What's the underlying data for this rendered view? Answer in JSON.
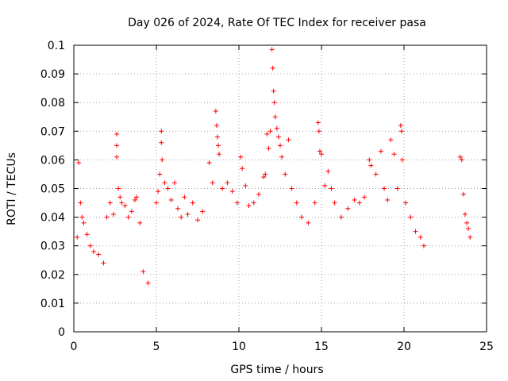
{
  "chart_data": {
    "type": "scatter",
    "title": "Day 026 of 2024, Rate Of TEC Index for receiver pasa",
    "xlabel": "GPS time / hours",
    "ylabel": "ROTI / TECUs",
    "xlim": [
      0,
      25
    ],
    "ylim": [
      0,
      0.1
    ],
    "grid": true,
    "marker": "plus",
    "color": "#ff0000",
    "xticks": [
      "0",
      "5",
      "10",
      "15",
      "20",
      "25"
    ],
    "yticks": [
      "0",
      "0.01",
      "0.02",
      "0.03",
      "0.04",
      "0.05",
      "0.06",
      "0.07",
      "0.08",
      "0.09",
      "0.1"
    ],
    "series": [
      {
        "points": [
          [
            0.3,
            0.059
          ],
          [
            0.4,
            0.045
          ],
          [
            0.5,
            0.04
          ],
          [
            0.6,
            0.038
          ],
          [
            0.2,
            0.033
          ],
          [
            0.8,
            0.034
          ],
          [
            1.0,
            0.03
          ],
          [
            1.2,
            0.028
          ],
          [
            1.5,
            0.027
          ],
          [
            1.8,
            0.024
          ],
          [
            2.0,
            0.04
          ],
          [
            2.2,
            0.045
          ],
          [
            2.4,
            0.041
          ],
          [
            2.6,
            0.069
          ],
          [
            2.6,
            0.065
          ],
          [
            2.6,
            0.061
          ],
          [
            2.7,
            0.05
          ],
          [
            2.8,
            0.047
          ],
          [
            2.9,
            0.045
          ],
          [
            3.1,
            0.044
          ],
          [
            3.3,
            0.04
          ],
          [
            3.5,
            0.042
          ],
          [
            3.7,
            0.046
          ],
          [
            3.8,
            0.047
          ],
          [
            4.0,
            0.038
          ],
          [
            4.2,
            0.021
          ],
          [
            4.5,
            0.017
          ],
          [
            5.0,
            0.045
          ],
          [
            5.1,
            0.049
          ],
          [
            5.2,
            0.055
          ],
          [
            5.3,
            0.07
          ],
          [
            5.3,
            0.066
          ],
          [
            5.35,
            0.06
          ],
          [
            5.5,
            0.052
          ],
          [
            5.7,
            0.05
          ],
          [
            5.9,
            0.046
          ],
          [
            6.1,
            0.052
          ],
          [
            6.3,
            0.043
          ],
          [
            6.5,
            0.04
          ],
          [
            6.7,
            0.047
          ],
          [
            6.9,
            0.041
          ],
          [
            7.2,
            0.045
          ],
          [
            7.5,
            0.039
          ],
          [
            7.8,
            0.042
          ],
          [
            8.2,
            0.059
          ],
          [
            8.4,
            0.052
          ],
          [
            8.6,
            0.077
          ],
          [
            8.65,
            0.072
          ],
          [
            8.7,
            0.068
          ],
          [
            8.75,
            0.065
          ],
          [
            8.8,
            0.062
          ],
          [
            9.0,
            0.05
          ],
          [
            9.3,
            0.052
          ],
          [
            9.6,
            0.049
          ],
          [
            9.9,
            0.045
          ],
          [
            10.1,
            0.061
          ],
          [
            10.2,
            0.057
          ],
          [
            10.4,
            0.051
          ],
          [
            10.6,
            0.044
          ],
          [
            10.9,
            0.045
          ],
          [
            11.2,
            0.048
          ],
          [
            11.5,
            0.054
          ],
          [
            11.6,
            0.055
          ],
          [
            11.7,
            0.069
          ],
          [
            11.8,
            0.064
          ],
          [
            11.9,
            0.07
          ],
          [
            12.0,
            0.0985
          ],
          [
            12.05,
            0.092
          ],
          [
            12.1,
            0.084
          ],
          [
            12.15,
            0.08
          ],
          [
            12.2,
            0.075
          ],
          [
            12.3,
            0.071
          ],
          [
            12.4,
            0.068
          ],
          [
            12.5,
            0.065
          ],
          [
            12.6,
            0.061
          ],
          [
            12.8,
            0.055
          ],
          [
            13.0,
            0.067
          ],
          [
            13.2,
            0.05
          ],
          [
            13.5,
            0.045
          ],
          [
            13.8,
            0.04
          ],
          [
            14.2,
            0.038
          ],
          [
            14.6,
            0.045
          ],
          [
            14.8,
            0.073
          ],
          [
            14.85,
            0.07
          ],
          [
            14.9,
            0.063
          ],
          [
            15.0,
            0.062
          ],
          [
            15.2,
            0.051
          ],
          [
            15.4,
            0.056
          ],
          [
            15.6,
            0.05
          ],
          [
            15.8,
            0.045
          ],
          [
            16.2,
            0.04
          ],
          [
            16.6,
            0.043
          ],
          [
            17.0,
            0.046
          ],
          [
            17.3,
            0.045
          ],
          [
            17.6,
            0.047
          ],
          [
            17.9,
            0.06
          ],
          [
            18.0,
            0.058
          ],
          [
            18.3,
            0.055
          ],
          [
            18.6,
            0.063
          ],
          [
            18.8,
            0.05
          ],
          [
            19.0,
            0.046
          ],
          [
            19.2,
            0.067
          ],
          [
            19.4,
            0.062
          ],
          [
            19.6,
            0.05
          ],
          [
            19.8,
            0.072
          ],
          [
            19.85,
            0.07
          ],
          [
            19.9,
            0.06
          ],
          [
            20.1,
            0.045
          ],
          [
            20.4,
            0.04
          ],
          [
            20.7,
            0.035
          ],
          [
            21.0,
            0.033
          ],
          [
            21.2,
            0.03
          ],
          [
            23.4,
            0.061
          ],
          [
            23.5,
            0.06
          ],
          [
            23.6,
            0.048
          ],
          [
            23.7,
            0.041
          ],
          [
            23.8,
            0.038
          ],
          [
            23.9,
            0.036
          ],
          [
            24.0,
            0.033
          ]
        ]
      }
    ]
  }
}
